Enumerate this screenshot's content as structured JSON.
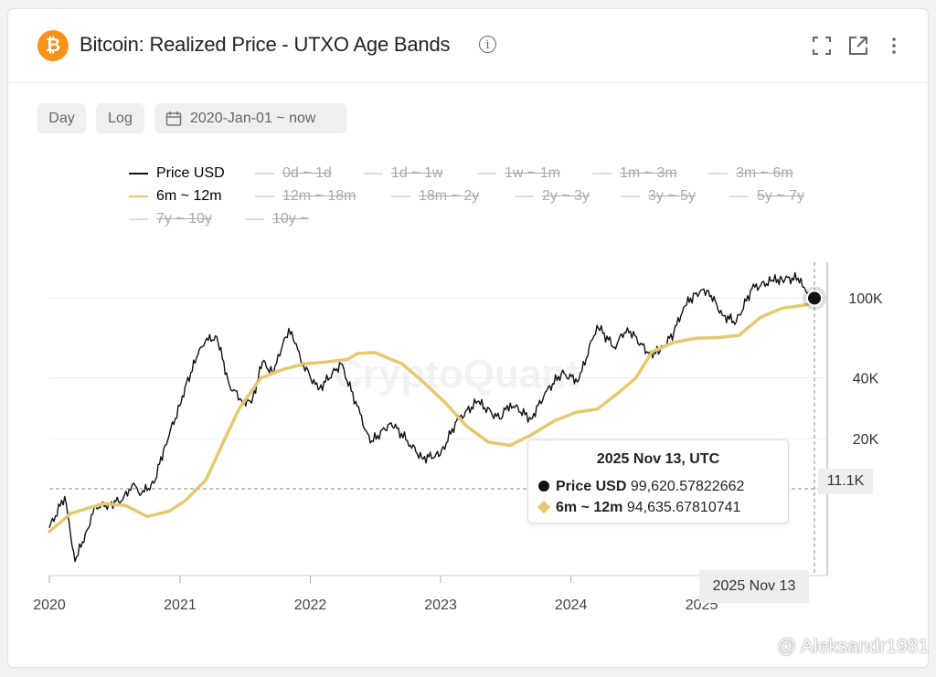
{
  "header": {
    "title": "Bitcoin: Realized Price - UTXO Age Bands",
    "info": "i",
    "coin_symbol": "₿"
  },
  "controls": {
    "day_label": "Day",
    "log_label": "Log",
    "date_range": "2020-Jan-01 ~ now"
  },
  "legend": [
    {
      "label": "Price USD",
      "active": true,
      "color": "#111111"
    },
    {
      "label": "0d ~ 1d",
      "active": false
    },
    {
      "label": "1d ~ 1w",
      "active": false
    },
    {
      "label": "1w ~ 1m",
      "active": false
    },
    {
      "label": "1m ~ 3m",
      "active": false
    },
    {
      "label": "3m ~ 6m",
      "active": false
    },
    {
      "label": "6m ~ 12m",
      "active": true,
      "color": "#e5c96f"
    },
    {
      "label": "12m ~ 18m",
      "active": false
    },
    {
      "label": "18m ~ 2y",
      "active": false
    },
    {
      "label": "2y ~ 3y",
      "active": false
    },
    {
      "label": "3y ~ 5y",
      "active": false
    },
    {
      "label": "5y ~ 7y",
      "active": false
    },
    {
      "label": "7y ~ 10y",
      "active": false
    },
    {
      "label": "10y ~",
      "active": false
    }
  ],
  "watermark": "CryptoQuant",
  "tooltip": {
    "title": "2025 Nov 13, UTC",
    "rows": [
      {
        "name": "Price USD",
        "value": "99,620.57822662"
      },
      {
        "name": "6m ~ 12m",
        "value": "94,635.67810741"
      }
    ]
  },
  "crosshair": {
    "y_label": "11.1K",
    "x_label": "2025 Nov 13"
  },
  "credit": "@ Aleksandr1981",
  "chart_data": {
    "type": "line",
    "title": "Bitcoin: Realized Price - UTXO Age Bands",
    "yscale": "log",
    "ylim": [
      4500,
      160000
    ],
    "y_ticks": [
      {
        "label": "100K",
        "value": 100000
      },
      {
        "label": "40K",
        "value": 40000
      },
      {
        "label": "20K",
        "value": 20000
      }
    ],
    "x_ticks": [
      "2020",
      "2021",
      "2022",
      "2023",
      "2024",
      "2025"
    ],
    "grid": true,
    "legend_position": "top",
    "series": [
      {
        "name": "Price USD",
        "color": "#111111",
        "points": [
          [
            "2020-01-01",
            7200
          ],
          [
            "2020-02-13",
            10300
          ],
          [
            "2020-03-13",
            4900
          ],
          [
            "2020-04-15",
            7000
          ],
          [
            "2020-05-10",
            9200
          ],
          [
            "2020-06-15",
            9400
          ],
          [
            "2020-07-25",
            10000
          ],
          [
            "2020-08-20",
            11800
          ],
          [
            "2020-09-15",
            10700
          ],
          [
            "2020-10-20",
            12000
          ],
          [
            "2020-11-20",
            18500
          ],
          [
            "2020-12-31",
            29000
          ],
          [
            "2021-01-15",
            36000
          ],
          [
            "2021-02-20",
            52000
          ],
          [
            "2021-03-13",
            61000
          ],
          [
            "2021-04-14",
            64000
          ],
          [
            "2021-05-19",
            37000
          ],
          [
            "2021-06-22",
            31000
          ],
          [
            "2021-07-20",
            30000
          ],
          [
            "2021-08-20",
            48000
          ],
          [
            "2021-09-20",
            42000
          ],
          [
            "2021-10-20",
            63000
          ],
          [
            "2021-11-10",
            68000
          ],
          [
            "2021-12-05",
            49000
          ],
          [
            "2022-01-23",
            35000
          ],
          [
            "2022-03-28",
            47000
          ],
          [
            "2022-05-12",
            29000
          ],
          [
            "2022-06-18",
            19000
          ],
          [
            "2022-08-15",
            24000
          ],
          [
            "2022-09-30",
            19500
          ],
          [
            "2022-11-09",
            16000
          ],
          [
            "2022-12-31",
            16600
          ],
          [
            "2023-02-15",
            24500
          ],
          [
            "2023-04-14",
            30500
          ],
          [
            "2023-06-15",
            25000
          ],
          [
            "2023-07-15",
            30000
          ],
          [
            "2023-09-11",
            25000
          ],
          [
            "2023-10-25",
            34500
          ],
          [
            "2023-12-05",
            42000
          ],
          [
            "2024-01-23",
            39000
          ],
          [
            "2024-03-14",
            73000
          ],
          [
            "2024-05-01",
            57000
          ],
          [
            "2024-06-07",
            71000
          ],
          [
            "2024-08-05",
            53000
          ],
          [
            "2024-09-06",
            54000
          ],
          [
            "2024-10-15",
            67000
          ],
          [
            "2024-11-12",
            90000
          ],
          [
            "2024-12-17",
            106000
          ],
          [
            "2025-01-20",
            109000
          ],
          [
            "2025-02-28",
            82000
          ],
          [
            "2025-04-08",
            76000
          ],
          [
            "2025-05-22",
            111000
          ],
          [
            "2025-07-14",
            121000
          ],
          [
            "2025-08-14",
            124000
          ],
          [
            "2025-10-06",
            125000
          ],
          [
            "2025-10-20",
            108000
          ],
          [
            "2025-11-13",
            99620.58
          ]
        ]
      },
      {
        "name": "6m ~ 12m",
        "color": "#e5c96f",
        "points": [
          [
            "2020-01-01",
            6900
          ],
          [
            "2020-03-01",
            8500
          ],
          [
            "2020-06-01",
            9500
          ],
          [
            "2020-08-01",
            9300
          ],
          [
            "2020-10-01",
            8200
          ],
          [
            "2020-12-01",
            8700
          ],
          [
            "2021-01-15",
            9800
          ],
          [
            "2021-03-15",
            12500
          ],
          [
            "2021-05-01",
            19000
          ],
          [
            "2021-06-15",
            28000
          ],
          [
            "2021-08-15",
            40000
          ],
          [
            "2021-10-15",
            44000
          ],
          [
            "2021-12-15",
            47000
          ],
          [
            "2022-02-15",
            48000
          ],
          [
            "2022-04-15",
            49500
          ],
          [
            "2022-05-15",
            53000
          ],
          [
            "2022-07-01",
            53500
          ],
          [
            "2022-09-15",
            47000
          ],
          [
            "2022-11-15",
            38000
          ],
          [
            "2023-01-15",
            30000
          ],
          [
            "2023-03-15",
            23000
          ],
          [
            "2023-05-15",
            19200
          ],
          [
            "2023-07-15",
            18500
          ],
          [
            "2023-09-15",
            21000
          ],
          [
            "2023-11-15",
            24500
          ],
          [
            "2024-01-15",
            27000
          ],
          [
            "2024-03-15",
            28000
          ],
          [
            "2024-05-15",
            34000
          ],
          [
            "2024-07-01",
            40000
          ],
          [
            "2024-08-15",
            54000
          ],
          [
            "2024-10-15",
            60000
          ],
          [
            "2024-12-15",
            63000
          ],
          [
            "2025-02-15",
            63500
          ],
          [
            "2025-04-15",
            65000
          ],
          [
            "2025-06-15",
            80000
          ],
          [
            "2025-08-15",
            89000
          ],
          [
            "2025-10-15",
            92000
          ],
          [
            "2025-11-13",
            94635.68
          ]
        ]
      }
    ]
  }
}
